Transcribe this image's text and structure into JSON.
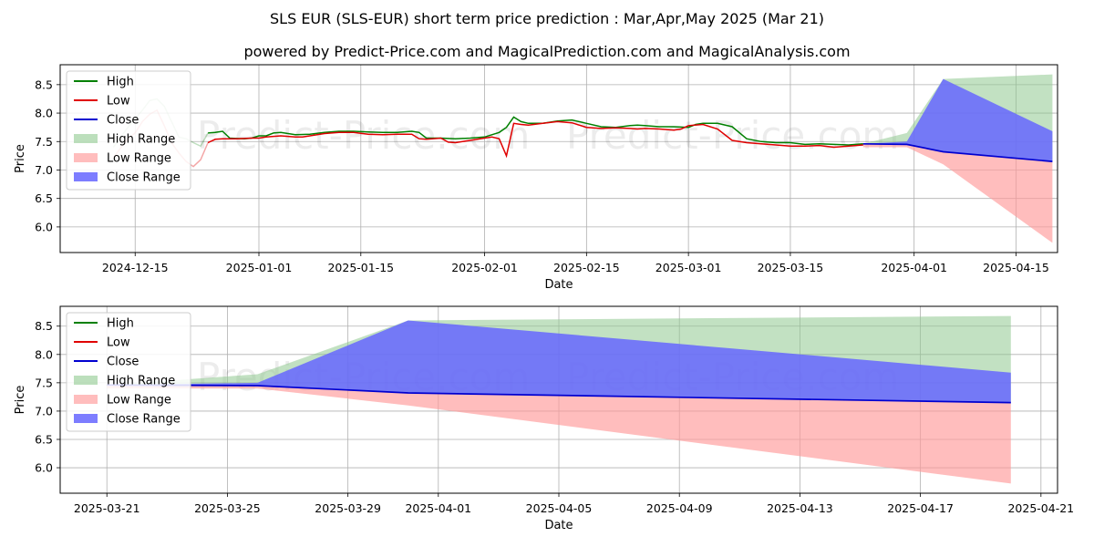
{
  "chart_title": "SLS EUR (SLS-EUR) short term price prediction : Mar,Apr,May 2025 (Mar 21)",
  "chart_subtitle": "powered by Predict-Price.com and MagicalPrediction.com and MagicalAnalysis.com",
  "watermark": "Predict-Price.com",
  "colors": {
    "high": "#008000",
    "low": "#e00000",
    "close": "#0000d0",
    "high_range": "#8fc98f",
    "low_range": "#ff9999",
    "close_range": "#6666ff"
  },
  "legend": [
    "High",
    "Low",
    "Close",
    "High Range",
    "Low Range",
    "Close Range"
  ],
  "chart_data": [
    {
      "type": "line",
      "panel": "top",
      "xlabel": "Date",
      "ylabel": "Price",
      "xlim_day": [
        -10.3,
        126.7
      ],
      "ylim": [
        5.55,
        8.85
      ],
      "xticks": [
        {
          "day": 0,
          "label": "2024-12-15"
        },
        {
          "day": 17,
          "label": "2025-01-01"
        },
        {
          "day": 31,
          "label": "2025-01-15"
        },
        {
          "day": 48,
          "label": "2025-02-01"
        },
        {
          "day": 62,
          "label": "2025-02-15"
        },
        {
          "day": 76,
          "label": "2025-03-01"
        },
        {
          "day": 90,
          "label": "2025-03-15"
        },
        {
          "day": 107,
          "label": "2025-04-01"
        },
        {
          "day": 121,
          "label": "2025-04-15"
        }
      ],
      "yticks": [
        6.0,
        6.5,
        7.0,
        7.5,
        8.0,
        8.5
      ],
      "history_high": [
        [
          -3,
          7.4
        ],
        [
          -1,
          7.75
        ],
        [
          0,
          7.9
        ],
        [
          1,
          8.05
        ],
        [
          2,
          8.22
        ],
        [
          3,
          8.25
        ],
        [
          4,
          8.12
        ],
        [
          5,
          7.85
        ],
        [
          6,
          7.58
        ],
        [
          7,
          7.55
        ],
        [
          8,
          7.48
        ],
        [
          9,
          7.42
        ],
        [
          10,
          7.65
        ],
        [
          11,
          7.66
        ],
        [
          12,
          7.68
        ],
        [
          13,
          7.56
        ],
        [
          15,
          7.55
        ],
        [
          16,
          7.56
        ],
        [
          17,
          7.6
        ],
        [
          18,
          7.6
        ],
        [
          19,
          7.65
        ],
        [
          20,
          7.66
        ],
        [
          22,
          7.62
        ],
        [
          24,
          7.63
        ],
        [
          26,
          7.66
        ],
        [
          28,
          7.68
        ],
        [
          30,
          7.68
        ],
        [
          32,
          7.67
        ],
        [
          34,
          7.66
        ],
        [
          36,
          7.66
        ],
        [
          38,
          7.68
        ],
        [
          39,
          7.66
        ],
        [
          40,
          7.56
        ],
        [
          42,
          7.56
        ],
        [
          44,
          7.55
        ],
        [
          46,
          7.56
        ],
        [
          48,
          7.58
        ],
        [
          49,
          7.62
        ],
        [
          50,
          7.66
        ],
        [
          51,
          7.75
        ],
        [
          52,
          7.93
        ],
        [
          53,
          7.85
        ],
        [
          54,
          7.82
        ],
        [
          56,
          7.82
        ],
        [
          58,
          7.86
        ],
        [
          60,
          7.88
        ],
        [
          62,
          7.82
        ],
        [
          64,
          7.76
        ],
        [
          66,
          7.75
        ],
        [
          68,
          7.78
        ],
        [
          69,
          7.79
        ],
        [
          70,
          7.78
        ],
        [
          72,
          7.76
        ],
        [
          74,
          7.76
        ],
        [
          76,
          7.75
        ],
        [
          77,
          7.8
        ],
        [
          78,
          7.82
        ],
        [
          80,
          7.82
        ],
        [
          82,
          7.76
        ],
        [
          84,
          7.55
        ],
        [
          86,
          7.5
        ],
        [
          88,
          7.48
        ],
        [
          90,
          7.48
        ],
        [
          92,
          7.45
        ],
        [
          94,
          7.46
        ],
        [
          96,
          7.45
        ],
        [
          98,
          7.44
        ],
        [
          100,
          7.46
        ]
      ],
      "history_low": [
        [
          -3,
          7.22
        ],
        [
          -1,
          7.55
        ],
        [
          0,
          7.65
        ],
        [
          1,
          7.85
        ],
        [
          2,
          7.98
        ],
        [
          3,
          8.05
        ],
        [
          4,
          7.78
        ],
        [
          5,
          7.48
        ],
        [
          6,
          7.3
        ],
        [
          7,
          7.15
        ],
        [
          8,
          7.06
        ],
        [
          9,
          7.18
        ],
        [
          10,
          7.48
        ],
        [
          11,
          7.54
        ],
        [
          12,
          7.55
        ],
        [
          14,
          7.55
        ],
        [
          16,
          7.56
        ],
        [
          17,
          7.56
        ],
        [
          18,
          7.58
        ],
        [
          20,
          7.6
        ],
        [
          22,
          7.58
        ],
        [
          23,
          7.58
        ],
        [
          24,
          7.6
        ],
        [
          26,
          7.64
        ],
        [
          28,
          7.66
        ],
        [
          30,
          7.66
        ],
        [
          32,
          7.63
        ],
        [
          34,
          7.62
        ],
        [
          36,
          7.63
        ],
        [
          38,
          7.63
        ],
        [
          39,
          7.55
        ],
        [
          40,
          7.54
        ],
        [
          42,
          7.56
        ],
        [
          43,
          7.49
        ],
        [
          44,
          7.48
        ],
        [
          46,
          7.52
        ],
        [
          48,
          7.56
        ],
        [
          49,
          7.58
        ],
        [
          50,
          7.55
        ],
        [
          51,
          7.25
        ],
        [
          52,
          7.82
        ],
        [
          53,
          7.8
        ],
        [
          54,
          7.79
        ],
        [
          56,
          7.82
        ],
        [
          58,
          7.85
        ],
        [
          60,
          7.83
        ],
        [
          62,
          7.75
        ],
        [
          64,
          7.73
        ],
        [
          66,
          7.74
        ],
        [
          68,
          7.73
        ],
        [
          69,
          7.72
        ],
        [
          70,
          7.73
        ],
        [
          72,
          7.72
        ],
        [
          74,
          7.7
        ],
        [
          75,
          7.72
        ],
        [
          76,
          7.78
        ],
        [
          78,
          7.8
        ],
        [
          80,
          7.72
        ],
        [
          82,
          7.52
        ],
        [
          84,
          7.48
        ],
        [
          86,
          7.46
        ],
        [
          88,
          7.44
        ],
        [
          90,
          7.42
        ],
        [
          92,
          7.42
        ],
        [
          94,
          7.43
        ],
        [
          96,
          7.4
        ],
        [
          98,
          7.42
        ],
        [
          100,
          7.44
        ]
      ],
      "forecast_close": [
        [
          100,
          7.46
        ],
        [
          106,
          7.45
        ],
        [
          111,
          7.32
        ],
        [
          126,
          7.15
        ]
      ],
      "high_range_upper": [
        [
          100,
          7.46
        ],
        [
          106,
          7.65
        ],
        [
          111,
          8.6
        ],
        [
          126,
          8.68
        ]
      ],
      "high_range_lower": [
        [
          100,
          7.46
        ],
        [
          106,
          7.45
        ],
        [
          111,
          7.32
        ],
        [
          126,
          7.15
        ]
      ],
      "low_range_upper": [
        [
          100,
          7.46
        ],
        [
          106,
          7.45
        ],
        [
          111,
          7.32
        ],
        [
          126,
          7.15
        ]
      ],
      "low_range_lower": [
        [
          100,
          7.4
        ],
        [
          106,
          7.4
        ],
        [
          111,
          7.1
        ],
        [
          126,
          5.72
        ]
      ],
      "close_range_upper": [
        [
          100,
          7.46
        ],
        [
          106,
          7.5
        ],
        [
          111,
          8.6
        ],
        [
          126,
          7.68
        ]
      ],
      "close_range_lower": [
        [
          100,
          7.46
        ],
        [
          106,
          7.45
        ],
        [
          111,
          7.32
        ],
        [
          126,
          7.15
        ]
      ]
    },
    {
      "type": "line",
      "panel": "bottom",
      "xlabel": "Date",
      "ylabel": "Price",
      "xlim_day": [
        -1.55,
        31.55
      ],
      "ylim": [
        5.55,
        8.85
      ],
      "xticks": [
        {
          "day": 0,
          "label": "2025-03-21"
        },
        {
          "day": 4,
          "label": "2025-03-25"
        },
        {
          "day": 8,
          "label": "2025-03-29"
        },
        {
          "day": 11,
          "label": "2025-04-01"
        },
        {
          "day": 15,
          "label": "2025-04-05"
        },
        {
          "day": 19,
          "label": "2025-04-09"
        },
        {
          "day": 23,
          "label": "2025-04-13"
        },
        {
          "day": 27,
          "label": "2025-04-17"
        },
        {
          "day": 31,
          "label": "2025-04-21"
        }
      ],
      "yticks": [
        6.0,
        6.5,
        7.0,
        7.5,
        8.0,
        8.5
      ],
      "forecast_close": [
        [
          0,
          7.46
        ],
        [
          5,
          7.45
        ],
        [
          10,
          7.32
        ],
        [
          30,
          7.15
        ]
      ],
      "high_range_upper": [
        [
          0,
          7.46
        ],
        [
          5,
          7.65
        ],
        [
          10,
          8.6
        ],
        [
          30,
          8.68
        ]
      ],
      "high_range_lower": [
        [
          0,
          7.46
        ],
        [
          5,
          7.45
        ],
        [
          10,
          7.32
        ],
        [
          30,
          7.15
        ]
      ],
      "low_range_upper": [
        [
          0,
          7.46
        ],
        [
          5,
          7.45
        ],
        [
          10,
          7.32
        ],
        [
          30,
          7.15
        ]
      ],
      "low_range_lower": [
        [
          0,
          7.4
        ],
        [
          5,
          7.4
        ],
        [
          10,
          7.1
        ],
        [
          30,
          5.72
        ]
      ],
      "close_range_upper": [
        [
          0,
          7.46
        ],
        [
          5,
          7.5
        ],
        [
          10,
          8.6
        ],
        [
          30,
          7.68
        ]
      ],
      "close_range_lower": [
        [
          0,
          7.46
        ],
        [
          5,
          7.45
        ],
        [
          10,
          7.32
        ],
        [
          30,
          7.15
        ]
      ]
    }
  ]
}
